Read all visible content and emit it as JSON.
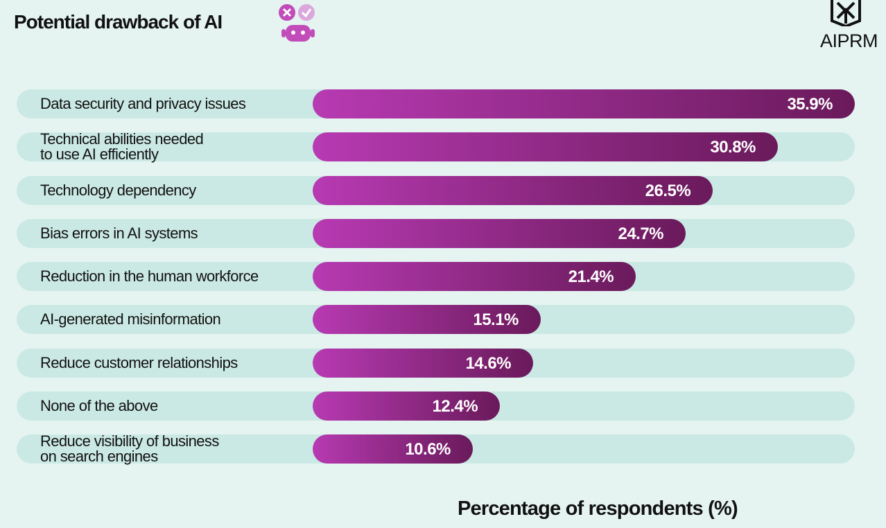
{
  "brand": "AIPRM",
  "chart_data": {
    "type": "bar",
    "orientation": "horizontal",
    "title": "Potential drawback of AI",
    "x_label": "Percentage of respondents (%)",
    "categories": [
      "Data security and privacy issues",
      "Technical abilities needed\nto use AI efficiently",
      "Technology dependency",
      "Bias errors in AI systems",
      "Reduction in the human workforce",
      "AI-generated misinformation",
      "Reduce customer relationships",
      "None of the above",
      "Reduce visibility of business\non search engines"
    ],
    "values": [
      35.9,
      30.8,
      26.5,
      24.7,
      21.4,
      15.1,
      14.6,
      12.4,
      10.6
    ],
    "value_labels": [
      "35.9%",
      "30.8%",
      "26.5%",
      "24.7%",
      "21.4%",
      "15.1%",
      "14.6%",
      "12.4%",
      "10.6%"
    ],
    "color": [
      "#b73ab2",
      "#6a1a5b"
    ],
    "track_color": "#cbe9e4"
  }
}
